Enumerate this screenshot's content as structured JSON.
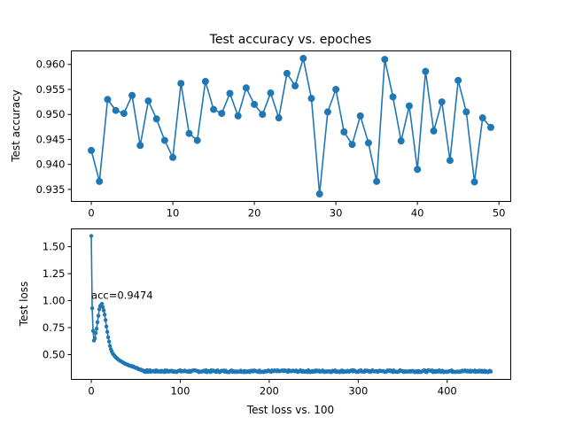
{
  "figure": {
    "background": "#ffffff",
    "line_color": "#1f77b4"
  },
  "chart_data": [
    {
      "type": "line",
      "title": "Test accuracy vs. epoches",
      "xlabel": "",
      "ylabel": "Test accuracy",
      "xlim": [
        -2.45,
        51.45
      ],
      "ylim": [
        0.9326,
        0.9627
      ],
      "xticks": [
        0,
        10,
        20,
        30,
        40,
        50
      ],
      "yticks": [
        0.935,
        0.94,
        0.945,
        0.95,
        0.955,
        0.96
      ],
      "ytick_labels": [
        "0.935",
        "0.940",
        "0.945",
        "0.950",
        "0.955",
        "0.960"
      ],
      "grid": false,
      "marker": "circle",
      "series": [
        {
          "x": [
            0,
            1,
            2,
            3,
            4,
            5,
            6,
            7,
            8,
            9,
            10,
            11,
            12,
            13,
            14,
            15,
            16,
            17,
            18,
            19,
            20,
            21,
            22,
            23,
            24,
            25,
            26,
            27,
            28,
            29,
            30,
            31,
            32,
            33,
            34,
            35,
            36,
            37,
            38,
            39,
            40,
            41,
            42,
            43,
            44,
            45,
            46,
            47,
            48,
            49
          ],
          "y": [
            0.9428,
            0.9366,
            0.953,
            0.9508,
            0.9502,
            0.9538,
            0.9438,
            0.9527,
            0.9491,
            0.9448,
            0.9414,
            0.9562,
            0.9462,
            0.9448,
            0.9566,
            0.951,
            0.9502,
            0.9542,
            0.9497,
            0.9553,
            0.952,
            0.95,
            0.9543,
            0.9493,
            0.9582,
            0.9557,
            0.9612,
            0.9532,
            0.9341,
            0.9505,
            0.955,
            0.9465,
            0.944,
            0.9497,
            0.9443,
            0.9366,
            0.961,
            0.9535,
            0.9447,
            0.9517,
            0.939,
            0.9586,
            0.9467,
            0.9525,
            0.9408,
            0.9568,
            0.9505,
            0.9365,
            0.9493,
            0.9474
          ]
        }
      ]
    },
    {
      "type": "line",
      "title": "",
      "xlabel": "Test loss vs. 100",
      "ylabel": "Test loss",
      "xlim": [
        -22.45,
        471.45
      ],
      "ylim": [
        0.27,
        1.665
      ],
      "xticks": [
        0,
        100,
        200,
        300,
        400
      ],
      "yticks": [
        0.5,
        0.75,
        1.0,
        1.25,
        1.5
      ],
      "ytick_labels": [
        "0.50",
        "0.75",
        "1.00",
        "1.25",
        "1.50"
      ],
      "grid": false,
      "marker": "small-dot",
      "annotation": {
        "text": "acc=0.9474",
        "x": 0,
        "y": 1.0
      },
      "loss_curve": {
        "count": 450,
        "head": [
          1.6,
          0.93,
          0.72,
          0.63,
          0.65,
          0.7,
          0.74,
          0.8,
          0.86,
          0.92,
          0.95,
          0.96,
          0.97,
          0.94,
          0.91,
          0.87,
          0.82,
          0.76,
          0.71,
          0.66,
          0.62,
          0.58,
          0.55,
          0.53,
          0.51,
          0.5,
          0.49,
          0.48,
          0.47,
          0.465,
          0.455,
          0.45,
          0.445,
          0.44,
          0.435,
          0.43,
          0.425,
          0.42,
          0.415,
          0.41
        ],
        "plateau": 0.346,
        "jitter": 0.009
      }
    }
  ]
}
